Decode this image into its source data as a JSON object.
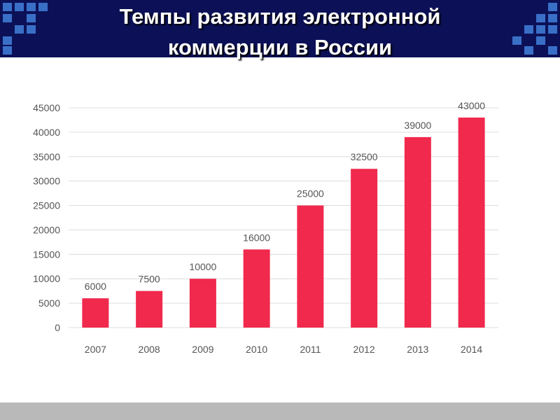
{
  "header": {
    "title_line1": "Темпы развития электронной",
    "title_line2": "коммерции в России",
    "bg_color": "#0c1157",
    "decor_color": "#3a6fc8"
  },
  "chart_data": {
    "type": "bar",
    "categories": [
      "2007",
      "2008",
      "2009",
      "2010",
      "2011",
      "2012",
      "2013",
      "2014"
    ],
    "values": [
      6000,
      7500,
      10000,
      16000,
      25000,
      32500,
      39000,
      43000
    ],
    "data_labels": [
      "6000",
      "7500",
      "10000",
      "16000",
      "25000",
      "32500",
      "39000",
      "43000"
    ],
    "title": "",
    "xlabel": "",
    "ylabel": "",
    "ylim": [
      0,
      45000
    ],
    "yticks": [
      0,
      5000,
      10000,
      15000,
      20000,
      25000,
      30000,
      35000,
      40000,
      45000
    ],
    "ytick_labels": [
      "0",
      "5000",
      "10000",
      "15000",
      "20000",
      "25000",
      "30000",
      "35000",
      "40000",
      "45000"
    ],
    "grid": true,
    "bar_color": "#f0294d",
    "grid_color": "#dcdcdc"
  }
}
